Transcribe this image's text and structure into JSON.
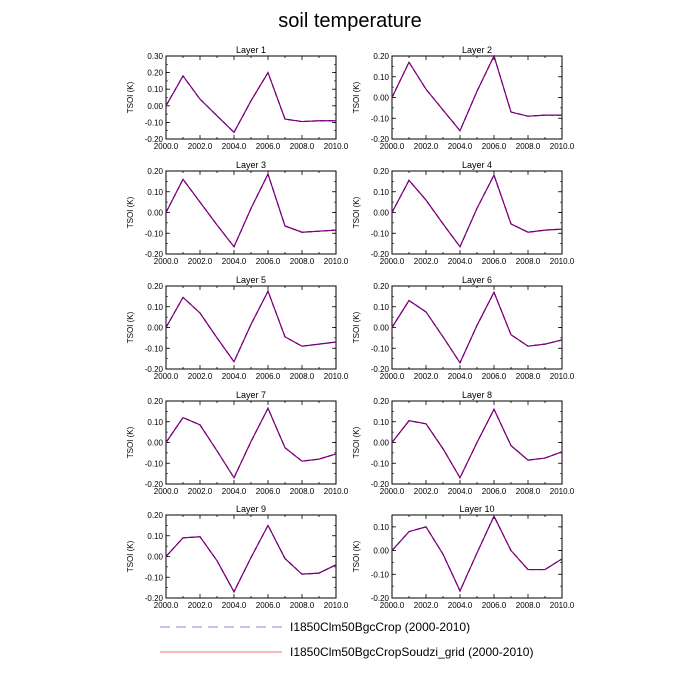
{
  "figure_title": "soil temperature",
  "legend": [
    {
      "label": "I1850Clm50BgcCrop (2000-2010)",
      "color": "#8a8ae0",
      "style": "dashed"
    },
    {
      "label": "I1850Clm50BgcCropSoudzi_grid (2000-2010)",
      "color": "#f07070",
      "style": "solid"
    }
  ],
  "overlay_color": "#7a007a",
  "chart_data": [
    {
      "type": "line",
      "title": "Layer 1",
      "xlabel": "",
      "ylabel": "TSOI  (K)",
      "xlim": [
        2000,
        2010
      ],
      "ylim": [
        -0.2,
        0.3
      ],
      "x": [
        2000,
        2001,
        2002,
        2003,
        2004,
        2005,
        2006,
        2007,
        2008,
        2009,
        2010
      ],
      "xticks": [
        "2000.0",
        "2002.0",
        "2004.0",
        "2006.0",
        "2008.0",
        "2010.0"
      ],
      "yticks": [
        "0.30",
        "0.20",
        "0.10",
        "0.00",
        "-0.10",
        "-0.20"
      ],
      "series": [
        {
          "name": "I1850Clm50BgcCrop (2000-2010)",
          "values": [
            0.0,
            0.18,
            0.04,
            -0.06,
            -0.16,
            0.03,
            0.2,
            -0.08,
            -0.095,
            -0.09,
            -0.09
          ]
        },
        {
          "name": "I1850Clm50BgcCropSoudzi_grid (2000-2010)",
          "values": [
            0.0,
            0.18,
            0.04,
            -0.06,
            -0.16,
            0.03,
            0.2,
            -0.08,
            -0.095,
            -0.09,
            -0.09
          ]
        }
      ]
    },
    {
      "type": "line",
      "title": "Layer 2",
      "xlabel": "",
      "ylabel": "TSOI  (K)",
      "xlim": [
        2000,
        2010
      ],
      "ylim": [
        -0.2,
        0.2
      ],
      "x": [
        2000,
        2001,
        2002,
        2003,
        2004,
        2005,
        2006,
        2007,
        2008,
        2009,
        2010
      ],
      "xticks": [
        "2000.0",
        "2002.0",
        "2004.0",
        "2006.0",
        "2008.0",
        "2010.0"
      ],
      "yticks": [
        "0.20",
        "0.10",
        "0.00",
        "-0.10",
        "-0.20"
      ],
      "series": [
        {
          "name": "I1850Clm50BgcCrop (2000-2010)",
          "values": [
            0.0,
            0.17,
            0.04,
            -0.06,
            -0.16,
            0.03,
            0.2,
            -0.07,
            -0.09,
            -0.085,
            -0.085
          ]
        },
        {
          "name": "I1850Clm50BgcCropSoudzi_grid (2000-2010)",
          "values": [
            0.0,
            0.17,
            0.04,
            -0.06,
            -0.16,
            0.03,
            0.2,
            -0.07,
            -0.09,
            -0.085,
            -0.085
          ]
        }
      ]
    },
    {
      "type": "line",
      "title": "Layer 3",
      "xlabel": "",
      "ylabel": "TSOI  (K)",
      "xlim": [
        2000,
        2010
      ],
      "ylim": [
        -0.2,
        0.2
      ],
      "x": [
        2000,
        2001,
        2002,
        2003,
        2004,
        2005,
        2006,
        2007,
        2008,
        2009,
        2010
      ],
      "xticks": [
        "2000.0",
        "2002.0",
        "2004.0",
        "2006.0",
        "2008.0",
        "2010.0"
      ],
      "yticks": [
        "0.20",
        "0.10",
        "0.00",
        "-0.10",
        "-0.20"
      ],
      "series": [
        {
          "name": "I1850Clm50BgcCrop (2000-2010)",
          "values": [
            0.0,
            0.16,
            0.05,
            -0.06,
            -0.165,
            0.02,
            0.185,
            -0.065,
            -0.095,
            -0.09,
            -0.085
          ]
        },
        {
          "name": "I1850Clm50BgcCropSoudzi_grid (2000-2010)",
          "values": [
            0.0,
            0.16,
            0.05,
            -0.06,
            -0.165,
            0.02,
            0.185,
            -0.065,
            -0.095,
            -0.09,
            -0.085
          ]
        }
      ]
    },
    {
      "type": "line",
      "title": "Layer 4",
      "xlabel": "",
      "ylabel": "TSOI  (K)",
      "xlim": [
        2000,
        2010
      ],
      "ylim": [
        -0.2,
        0.2
      ],
      "x": [
        2000,
        2001,
        2002,
        2003,
        2004,
        2005,
        2006,
        2007,
        2008,
        2009,
        2010
      ],
      "xticks": [
        "2000.0",
        "2002.0",
        "2004.0",
        "2006.0",
        "2008.0",
        "2010.0"
      ],
      "yticks": [
        "0.20",
        "0.10",
        "0.00",
        "-0.10",
        "-0.20"
      ],
      "series": [
        {
          "name": "I1850Clm50BgcCrop (2000-2010)",
          "values": [
            0.0,
            0.155,
            0.06,
            -0.055,
            -0.165,
            0.02,
            0.18,
            -0.055,
            -0.095,
            -0.085,
            -0.08
          ]
        },
        {
          "name": "I1850Clm50BgcCropSoudzi_grid (2000-2010)",
          "values": [
            0.0,
            0.155,
            0.06,
            -0.055,
            -0.165,
            0.02,
            0.18,
            -0.055,
            -0.095,
            -0.085,
            -0.08
          ]
        }
      ]
    },
    {
      "type": "line",
      "title": "Layer 5",
      "xlabel": "",
      "ylabel": "TSOI  (K)",
      "xlim": [
        2000,
        2010
      ],
      "ylim": [
        -0.2,
        0.2
      ],
      "x": [
        2000,
        2001,
        2002,
        2003,
        2004,
        2005,
        2006,
        2007,
        2008,
        2009,
        2010
      ],
      "xticks": [
        "2000.0",
        "2002.0",
        "2004.0",
        "2006.0",
        "2008.0",
        "2010.0"
      ],
      "yticks": [
        "0.20",
        "0.10",
        "0.00",
        "-0.10",
        "-0.20"
      ],
      "series": [
        {
          "name": "I1850Clm50BgcCrop (2000-2010)",
          "values": [
            0.0,
            0.145,
            0.07,
            -0.05,
            -0.165,
            0.015,
            0.175,
            -0.045,
            -0.09,
            -0.08,
            -0.07
          ]
        },
        {
          "name": "I1850Clm50BgcCropSoudzi_grid (2000-2010)",
          "values": [
            0.0,
            0.145,
            0.07,
            -0.05,
            -0.165,
            0.015,
            0.175,
            -0.045,
            -0.09,
            -0.08,
            -0.07
          ]
        }
      ]
    },
    {
      "type": "line",
      "title": "Layer 6",
      "xlabel": "",
      "ylabel": "TSOI  (K)",
      "xlim": [
        2000,
        2010
      ],
      "ylim": [
        -0.2,
        0.2
      ],
      "x": [
        2000,
        2001,
        2002,
        2003,
        2004,
        2005,
        2006,
        2007,
        2008,
        2009,
        2010
      ],
      "xticks": [
        "2000.0",
        "2002.0",
        "2004.0",
        "2006.0",
        "2008.0",
        "2010.0"
      ],
      "yticks": [
        "0.20",
        "0.10",
        "0.00",
        "-0.10",
        "-0.20"
      ],
      "series": [
        {
          "name": "I1850Clm50BgcCrop (2000-2010)",
          "values": [
            0.0,
            0.13,
            0.075,
            -0.045,
            -0.17,
            0.01,
            0.17,
            -0.035,
            -0.09,
            -0.08,
            -0.06
          ]
        },
        {
          "name": "I1850Clm50BgcCropSoudzi_grid (2000-2010)",
          "values": [
            0.0,
            0.13,
            0.075,
            -0.045,
            -0.17,
            0.01,
            0.17,
            -0.035,
            -0.09,
            -0.08,
            -0.06
          ]
        }
      ]
    },
    {
      "type": "line",
      "title": "Layer 7",
      "xlabel": "",
      "ylabel": "TSOI  (K)",
      "xlim": [
        2000,
        2010
      ],
      "ylim": [
        -0.2,
        0.2
      ],
      "x": [
        2000,
        2001,
        2002,
        2003,
        2004,
        2005,
        2006,
        2007,
        2008,
        2009,
        2010
      ],
      "xticks": [
        "2000.0",
        "2002.0",
        "2004.0",
        "2006.0",
        "2008.0",
        "2010.0"
      ],
      "yticks": [
        "0.20",
        "0.10",
        "0.00",
        "-0.10",
        "-0.20"
      ],
      "series": [
        {
          "name": "I1850Clm50BgcCrop (2000-2010)",
          "values": [
            0.0,
            0.12,
            0.085,
            -0.04,
            -0.17,
            0.005,
            0.165,
            -0.025,
            -0.09,
            -0.08,
            -0.055
          ]
        },
        {
          "name": "I1850Clm50BgcCropSoudzi_grid (2000-2010)",
          "values": [
            0.0,
            0.12,
            0.085,
            -0.04,
            -0.17,
            0.005,
            0.165,
            -0.025,
            -0.09,
            -0.08,
            -0.055
          ]
        }
      ]
    },
    {
      "type": "line",
      "title": "Layer 8",
      "xlabel": "",
      "ylabel": "TSOI  (K)",
      "xlim": [
        2000,
        2010
      ],
      "ylim": [
        -0.2,
        0.2
      ],
      "x": [
        2000,
        2001,
        2002,
        2003,
        2004,
        2005,
        2006,
        2007,
        2008,
        2009,
        2010
      ],
      "xticks": [
        "2000.0",
        "2002.0",
        "2004.0",
        "2006.0",
        "2008.0",
        "2010.0"
      ],
      "yticks": [
        "0.20",
        "0.10",
        "0.00",
        "-0.10",
        "-0.20"
      ],
      "series": [
        {
          "name": "I1850Clm50BgcCrop (2000-2010)",
          "values": [
            0.0,
            0.105,
            0.09,
            -0.03,
            -0.17,
            0.0,
            0.16,
            -0.015,
            -0.085,
            -0.075,
            -0.045
          ]
        },
        {
          "name": "I1850Clm50BgcCropSoudzi_grid (2000-2010)",
          "values": [
            0.0,
            0.105,
            0.09,
            -0.03,
            -0.17,
            0.0,
            0.16,
            -0.015,
            -0.085,
            -0.075,
            -0.045
          ]
        }
      ]
    },
    {
      "type": "line",
      "title": "Layer 9",
      "xlabel": "",
      "ylabel": "TSOI  (K)",
      "xlim": [
        2000,
        2010
      ],
      "ylim": [
        -0.2,
        0.2
      ],
      "x": [
        2000,
        2001,
        2002,
        2003,
        2004,
        2005,
        2006,
        2007,
        2008,
        2009,
        2010
      ],
      "xticks": [
        "2000.0",
        "2002.0",
        "2004.0",
        "2006.0",
        "2008.0",
        "2010.0"
      ],
      "yticks": [
        "0.20",
        "0.10",
        "0.00",
        "-0.10",
        "-0.20"
      ],
      "series": [
        {
          "name": "I1850Clm50BgcCrop (2000-2010)",
          "values": [
            0.0,
            0.09,
            0.095,
            -0.02,
            -0.17,
            -0.005,
            0.15,
            -0.01,
            -0.085,
            -0.08,
            -0.04
          ]
        },
        {
          "name": "I1850Clm50BgcCropSoudzi_grid (2000-2010)",
          "values": [
            0.0,
            0.09,
            0.095,
            -0.02,
            -0.17,
            -0.005,
            0.15,
            -0.01,
            -0.085,
            -0.08,
            -0.04
          ]
        }
      ]
    },
    {
      "type": "line",
      "title": "Layer 10",
      "xlabel": "",
      "ylabel": "TSOI  (K)",
      "xlim": [
        2000,
        2010
      ],
      "ylim": [
        -0.2,
        0.15
      ],
      "x": [
        2000,
        2001,
        2002,
        2003,
        2004,
        2005,
        2006,
        2007,
        2008,
        2009,
        2010
      ],
      "xticks": [
        "2000.0",
        "2002.0",
        "2004.0",
        "2006.0",
        "2008.0",
        "2010.0"
      ],
      "yticks": [
        "0.10",
        "0.00",
        "-0.10",
        "-0.20"
      ],
      "yticks_values": [
        0.1,
        0.0,
        -0.1,
        -0.2
      ],
      "series": [
        {
          "name": "I1850Clm50BgcCrop (2000-2010)",
          "values": [
            0.0,
            0.08,
            0.1,
            -0.015,
            -0.17,
            -0.01,
            0.145,
            0.0,
            -0.08,
            -0.08,
            -0.035
          ]
        },
        {
          "name": "I1850Clm50BgcCropSoudzi_grid (2000-2010)",
          "values": [
            0.0,
            0.08,
            0.1,
            -0.015,
            -0.17,
            -0.01,
            0.145,
            0.0,
            -0.08,
            -0.08,
            -0.035
          ]
        }
      ]
    }
  ]
}
